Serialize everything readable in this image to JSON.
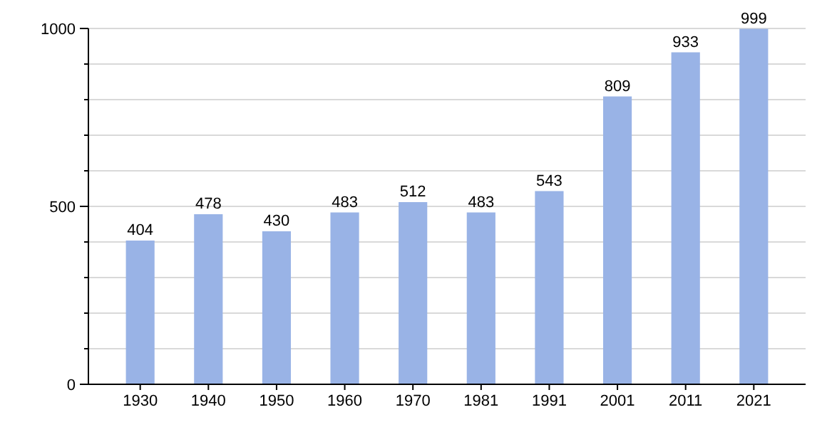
{
  "chart_data": {
    "type": "bar",
    "categories": [
      "1930",
      "1940",
      "1950",
      "1960",
      "1970",
      "1981",
      "1991",
      "2001",
      "2011",
      "2021"
    ],
    "values": [
      404,
      478,
      430,
      483,
      512,
      483,
      543,
      809,
      933,
      999
    ],
    "color": "#99b3e6",
    "ylim": [
      0,
      1000
    ],
    "yticks": [
      0,
      {
        "value": 100,
        "label": null
      },
      {
        "value": 200,
        "label": null
      },
      {
        "value": 300,
        "label": null
      },
      {
        "value": 400,
        "label": null
      },
      500,
      {
        "value": 600,
        "label": null
      },
      {
        "value": 700,
        "label": null
      },
      {
        "value": 800,
        "label": null
      },
      {
        "value": 900,
        "label": null
      },
      1000
    ],
    "grid": "y",
    "data_labels": true
  }
}
